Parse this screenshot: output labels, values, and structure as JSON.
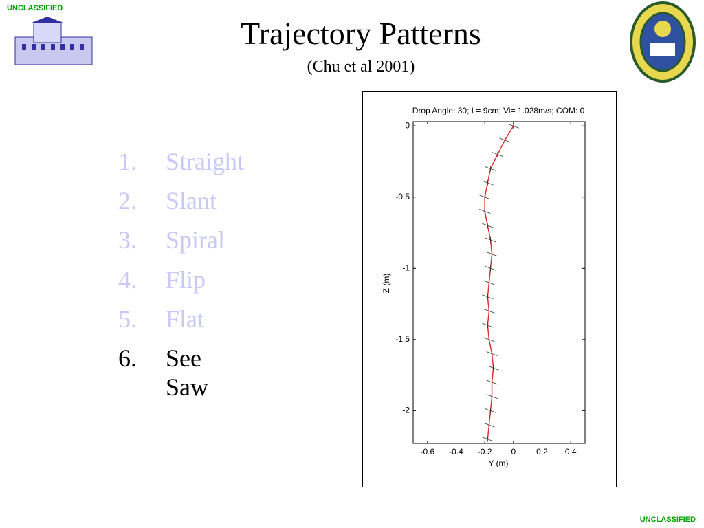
{
  "header": {
    "marking_top": "UNCLASSIFIED",
    "title": "Trajectory Patterns",
    "subtitle": "(Chu et al 2001)"
  },
  "list": [
    {
      "number": "1.",
      "text": "Straight"
    },
    {
      "number": "2.",
      "text": "Slant"
    },
    {
      "number": "3.",
      "text": "Spiral"
    },
    {
      "number": "4.",
      "text": "Flip"
    },
    {
      "number": "5.",
      "text": "Flat"
    },
    {
      "number": "6.",
      "text": "See Saw"
    }
  ],
  "footer": {
    "marking_bottom": "UNCLASSIFIED"
  },
  "chart_data": {
    "type": "line",
    "title": "Drop Angle: 30; L= 9cm; Vi= 1.028m/s; COM: 0",
    "x_label": "Y (m)",
    "y_label": "Z (m)",
    "x": [
      0,
      -0.06,
      -0.11,
      -0.16,
      -0.18,
      -0.2,
      -0.2,
      -0.18,
      -0.16,
      -0.15,
      -0.16,
      -0.17,
      -0.18,
      -0.17,
      -0.18,
      -0.17,
      -0.15,
      -0.14,
      -0.15,
      -0.15,
      -0.16,
      -0.17,
      -0.18
    ],
    "values": [
      0,
      -0.1,
      -0.2,
      -0.3,
      -0.4,
      -0.5,
      -0.6,
      -0.7,
      -0.8,
      -0.9,
      -1.0,
      -1.1,
      -1.2,
      -1.3,
      -1.4,
      -1.5,
      -1.6,
      -1.7,
      -1.8,
      -1.9,
      -2.0,
      -2.1,
      -2.2
    ],
    "color": "#e03030",
    "marker_color": "#333333",
    "xlim": [
      -0.7,
      0.5
    ],
    "ylim": [
      -2.23,
      0.03
    ],
    "xticks": [
      -0.6,
      -0.4,
      -0.2,
      0,
      0.2,
      0.4
    ],
    "yticks": [
      0,
      -0.5,
      -1,
      -1.5,
      -2
    ]
  }
}
